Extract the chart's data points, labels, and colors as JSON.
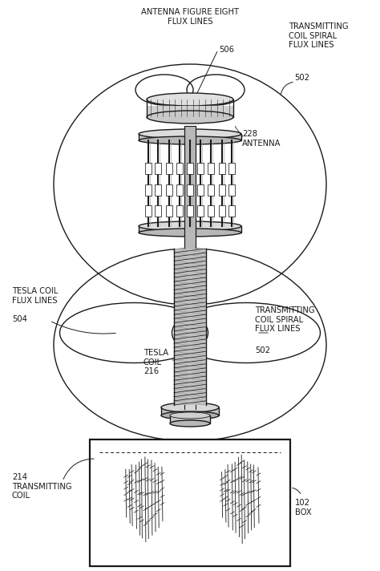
{
  "bg_color": "#ffffff",
  "line_color": "#1a1a1a",
  "label_color": "#1a1a1a",
  "figsize": [
    4.74,
    7.12
  ],
  "dpi": 100,
  "labels": {
    "antenna_flux_title": "ANTENNA FIGURE EIGHT\nFLUX LINES",
    "antenna_flux_num": "506",
    "transmitting_spiral_top": "TRANSMITTING\nCOIL SPIRAL\nFLUX LINES",
    "transmitting_spiral_num_top": "502",
    "antenna_label": "228\nANTENNA",
    "tesla_coil_flux": "TESLA COIL\nFLUX LINES",
    "tesla_coil_flux_num": "504",
    "tesla_coil_label": "TESLA\nCOIL\n216",
    "transmitting_spiral_mid": "TRANSMITTING\nCOIL SPIRAL\nFLUX LINES",
    "transmitting_spiral_num_mid": "502",
    "transmitting_coil_label": "214\nTRANSMITTING\nCOIL",
    "box_label": "102\nBOX"
  }
}
